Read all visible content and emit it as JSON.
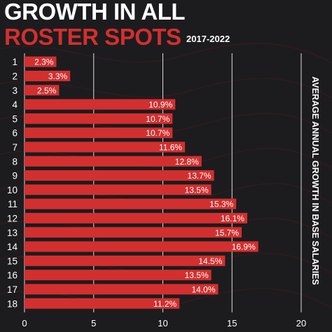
{
  "title_line1": "GROWTH IN ALL",
  "title_line2": "ROSTER SPOTS",
  "subtitle": "2017-2022",
  "colors": {
    "background": "#1c1c1e",
    "bar": "#d32f2f",
    "accent": "#d32f2f",
    "text": "#ffffff",
    "grid": "#ffffff"
  },
  "chart_data": {
    "type": "bar",
    "orientation": "horizontal",
    "categories": [
      "1",
      "2",
      "3",
      "4",
      "5",
      "6",
      "7",
      "8",
      "9",
      "10",
      "11",
      "12",
      "13",
      "14",
      "15",
      "16",
      "17",
      "18"
    ],
    "values": [
      2.3,
      3.3,
      2.5,
      10.9,
      10.7,
      10.7,
      11.6,
      12.8,
      13.7,
      13.5,
      15.3,
      16.1,
      15.7,
      16.9,
      14.5,
      13.5,
      14.0,
      11.2
    ],
    "labels": [
      "2.3%",
      "3.3%",
      "2.5%",
      "10.9%",
      "10.7%",
      "10.7%",
      "11.6%",
      "12.8%",
      "13.7%",
      "13.5%",
      "15.3%",
      "16.1%",
      "15.7%",
      "16.9%",
      "14.5%",
      "13.5%",
      "14.0%",
      "11.2%"
    ],
    "xticks": [
      "0",
      "5",
      "10",
      "15",
      "20"
    ],
    "xlim": [
      0,
      20
    ],
    "ylabel": "AVERAGE ANNUAL GROWTH IN BASE SALARIES",
    "grid": true,
    "legend": "none"
  }
}
